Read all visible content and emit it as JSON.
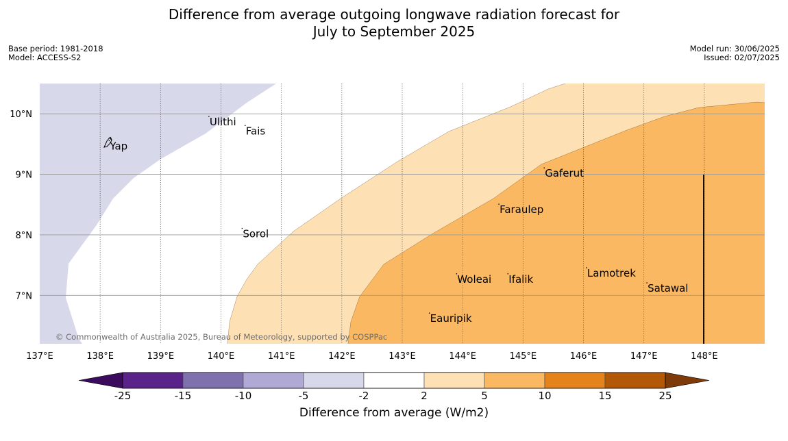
{
  "title": {
    "line1": "Difference from average outgoing longwave radiation forecast for",
    "line2": "July to September 2025"
  },
  "meta": {
    "base_period": "Base period: 1981-2018",
    "model": "Model: ACCESS-S2",
    "model_run": "Model run: 30/06/2025",
    "issued": "Issued: 02/07/2025"
  },
  "copyright": "© Commonwealth of Australia 2025, Bureau of Meteorology, supported by COSPPac",
  "map": {
    "lon_range": [
      137,
      149
    ],
    "lat_range": [
      6.2,
      10.5
    ],
    "lon_ticks": [
      "137°E",
      "138°E",
      "139°E",
      "140°E",
      "141°E",
      "142°E",
      "143°E",
      "144°E",
      "145°E",
      "146°E",
      "147°E",
      "148°E"
    ],
    "lat_ticks": [
      "10°N",
      "9°N",
      "8°N",
      "7°N"
    ],
    "places": [
      {
        "name": "Ulithi",
        "lon": 139.8,
        "lat": 9.9
      },
      {
        "name": "Fais",
        "lon": 140.4,
        "lat": 9.75
      },
      {
        "name": "Yap",
        "lon": 138.15,
        "lat": 9.5
      },
      {
        "name": "Gaferut",
        "lon": 145.35,
        "lat": 9.05
      },
      {
        "name": "Faraulep",
        "lon": 144.6,
        "lat": 8.45
      },
      {
        "name": "Sorol",
        "lon": 140.35,
        "lat": 8.05
      },
      {
        "name": "Lamotrek",
        "lon": 146.05,
        "lat": 7.4
      },
      {
        "name": "Woleai",
        "lon": 143.9,
        "lat": 7.3
      },
      {
        "name": "Ifalik",
        "lon": 144.75,
        "lat": 7.3
      },
      {
        "name": "Satawal",
        "lon": 147.05,
        "lat": 7.15
      },
      {
        "name": "Eauripik",
        "lon": 143.45,
        "lat": 6.65
      }
    ]
  },
  "colorbar": {
    "labels": [
      "-25",
      "-15",
      "-10",
      "-5",
      "-2",
      "2",
      "5",
      "10",
      "15",
      "25"
    ],
    "colors": [
      "#5a2389",
      "#7f70ae",
      "#b0a9d5",
      "#d7d8ea",
      "#ffffff",
      "#fde0b4",
      "#fbb862",
      "#e4831b",
      "#b35807"
    ],
    "under_color": "#3b0b5d",
    "over_color": "#7f3a0a",
    "title": "Difference from average (W/m2)"
  }
}
